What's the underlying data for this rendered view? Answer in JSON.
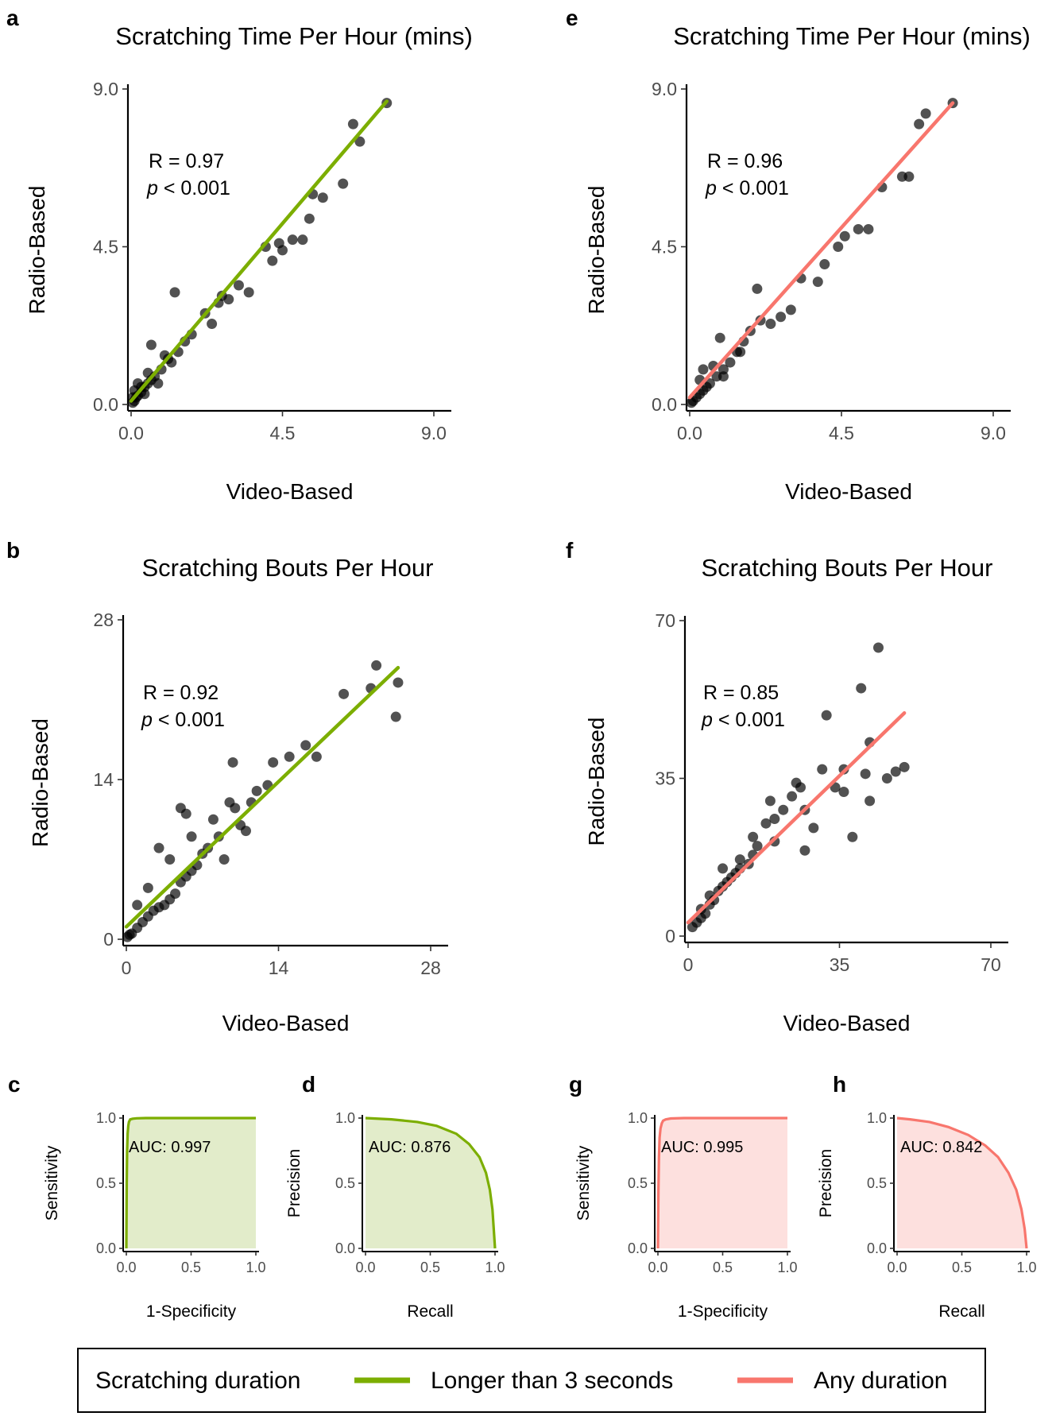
{
  "chart_data": [
    {
      "panel": "a",
      "type": "scatter",
      "title": "Scratching Time Per Hour (mins)",
      "xlabel": "Video-Based",
      "ylabel": "Radio-Based",
      "xlim": [
        0,
        9
      ],
      "ylim": [
        0,
        9
      ],
      "xticks": [
        "0.0",
        "4.5",
        "9.0"
      ],
      "yticks": [
        "0.0",
        "4.5",
        "9.0"
      ],
      "annotation": {
        "r": "R = 0.97",
        "p_italic": "p",
        "p_rest": " < 0.001"
      },
      "fit_line": {
        "color": "#7cae00",
        "x": [
          0.0,
          7.6
        ],
        "y": [
          0.1,
          8.65
        ]
      },
      "points": {
        "x": [
          7.6,
          6.6,
          6.8,
          6.3,
          5.7,
          5.4,
          5.3,
          5.1,
          4.8,
          4.5,
          4.4,
          4.2,
          4.0,
          3.5,
          3.2,
          2.9,
          2.7,
          2.6,
          2.4,
          2.2,
          1.8,
          1.6,
          1.4,
          1.2,
          1.1,
          0.9,
          0.7,
          0.6,
          0.5,
          0.4,
          0.3,
          0.2,
          0.15,
          0.1,
          0.05,
          0.3,
          0.5,
          0.8,
          1.0,
          1.3,
          0.2,
          0.4,
          0.6,
          0.1,
          0.05
        ],
        "y": [
          8.6,
          8.0,
          7.5,
          6.3,
          5.9,
          6.0,
          5.3,
          4.7,
          4.7,
          4.4,
          4.6,
          4.1,
          4.5,
          3.2,
          3.4,
          3.0,
          3.1,
          2.9,
          2.3,
          2.6,
          2.0,
          1.8,
          1.5,
          1.2,
          1.3,
          1.0,
          0.8,
          0.7,
          0.6,
          0.5,
          0.35,
          0.25,
          0.2,
          0.1,
          0.05,
          0.5,
          0.9,
          0.6,
          1.4,
          3.2,
          0.6,
          0.3,
          1.7,
          0.4,
          0.2
        ]
      }
    },
    {
      "panel": "b",
      "type": "scatter",
      "title": "Scratching Bouts Per Hour",
      "xlabel": "Video-Based",
      "ylabel": "Radio-Based",
      "xlim": [
        0,
        28
      ],
      "ylim": [
        0,
        28
      ],
      "xticks": [
        "0",
        "14",
        "28"
      ],
      "yticks": [
        "0",
        "14",
        "28"
      ],
      "annotation": {
        "r": "R = 0.92",
        "p_italic": "p",
        "p_rest": " < 0.001"
      },
      "fit_line": {
        "color": "#7cae00",
        "x": [
          0.0,
          25.0
        ],
        "y": [
          1.1,
          23.8
        ]
      },
      "points": {
        "x": [
          23.0,
          25.0,
          22.5,
          24.8,
          20.0,
          17.5,
          16.5,
          15.0,
          13.5,
          13.0,
          12.0,
          11.5,
          10.5,
          10.0,
          9.5,
          9.0,
          8.5,
          8.0,
          7.5,
          7.0,
          6.5,
          6.0,
          5.5,
          5.0,
          4.5,
          4.0,
          3.5,
          3.0,
          2.5,
          2.0,
          1.5,
          1.0,
          0.5,
          0.3,
          0.1,
          5.0,
          5.5,
          3.0,
          9.8,
          11.0,
          4.0,
          2.0,
          6.0,
          1.0
        ],
        "y": [
          24.0,
          22.5,
          22.0,
          19.5,
          21.5,
          16.0,
          17.0,
          16.0,
          15.5,
          13.5,
          13.0,
          12.0,
          10.0,
          11.5,
          12.0,
          7.0,
          9.0,
          10.5,
          8.0,
          7.5,
          6.5,
          6.0,
          5.5,
          5.0,
          4.0,
          3.5,
          3.0,
          2.8,
          2.5,
          2.0,
          1.5,
          1.0,
          0.5,
          0.4,
          0.2,
          11.5,
          11.0,
          8.0,
          15.5,
          9.5,
          7.0,
          4.5,
          9.0,
          3.0
        ]
      }
    },
    {
      "panel": "c",
      "type": "line",
      "curve": "roc",
      "xlabel": "1-Specificity",
      "ylabel": "Sensitivity",
      "xlim": [
        0,
        1
      ],
      "ylim": [
        0,
        1
      ],
      "xticks": [
        "0.0",
        "0.5",
        "1.0"
      ],
      "yticks": [
        "0.0",
        "0.5",
        "1.0"
      ],
      "auc_label": "AUC: 0.997",
      "color": "#7cae00",
      "fill": "#e2ecca",
      "x": [
        0.0,
        0.003,
        0.006,
        0.01,
        0.015,
        0.02,
        0.03,
        0.05,
        0.08,
        0.15,
        0.4,
        1.0
      ],
      "y": [
        0.0,
        0.5,
        0.75,
        0.88,
        0.94,
        0.97,
        0.99,
        0.995,
        0.998,
        1.0,
        1.0,
        1.0
      ]
    },
    {
      "panel": "d",
      "type": "line",
      "curve": "precision-recall",
      "xlabel": "Recall",
      "ylabel": "Precision",
      "xlim": [
        0,
        1
      ],
      "ylim": [
        0,
        1
      ],
      "xticks": [
        "0.0",
        "0.5",
        "1.0"
      ],
      "yticks": [
        "0.0",
        "0.5",
        "1.0"
      ],
      "auc_label": "AUC: 0.876",
      "color": "#7cae00",
      "fill": "#e2ecca",
      "x": [
        0.0,
        0.2,
        0.4,
        0.55,
        0.7,
        0.8,
        0.88,
        0.93,
        0.96,
        0.98,
        0.99,
        1.0
      ],
      "y": [
        1.0,
        0.99,
        0.97,
        0.94,
        0.88,
        0.8,
        0.7,
        0.58,
        0.45,
        0.3,
        0.15,
        0.0
      ]
    },
    {
      "panel": "e",
      "type": "scatter",
      "title": "Scratching Time Per Hour (mins)",
      "xlabel": "Video-Based",
      "ylabel": "Radio-Based",
      "xlim": [
        0,
        9
      ],
      "ylim": [
        0,
        9
      ],
      "xticks": [
        "0.0",
        "4.5",
        "9.0"
      ],
      "yticks": [
        "0.0",
        "4.5",
        "9.0"
      ],
      "annotation": {
        "r": "R = 0.96",
        "p_italic": "p",
        "p_rest": " < 0.001"
      },
      "fit_line": {
        "color": "#f8766d",
        "x": [
          0.0,
          7.8
        ],
        "y": [
          0.2,
          8.6
        ]
      },
      "points": {
        "x": [
          7.8,
          6.8,
          7.0,
          6.5,
          6.3,
          5.7,
          5.3,
          5.0,
          4.6,
          4.4,
          4.0,
          3.8,
          3.3,
          3.0,
          2.7,
          2.4,
          2.1,
          1.8,
          1.6,
          1.4,
          1.2,
          1.0,
          0.8,
          0.6,
          0.5,
          0.4,
          0.3,
          0.2,
          0.1,
          0.05,
          2.0,
          1.5,
          1.0,
          0.7,
          0.3,
          0.9,
          0.4
        ],
        "y": [
          8.6,
          8.0,
          8.3,
          6.5,
          6.5,
          6.2,
          5.0,
          5.0,
          4.8,
          4.5,
          4.0,
          3.5,
          3.6,
          2.7,
          2.5,
          2.3,
          2.4,
          2.1,
          1.8,
          1.5,
          1.2,
          1.0,
          0.8,
          0.6,
          0.5,
          0.4,
          0.3,
          0.2,
          0.1,
          0.05,
          3.3,
          1.5,
          0.8,
          1.1,
          0.7,
          1.9,
          1.0
        ]
      }
    },
    {
      "panel": "f",
      "type": "scatter",
      "title": "Scratching Bouts Per Hour",
      "xlabel": "Video-Based",
      "ylabel": "Radio-Based",
      "xlim": [
        0,
        70
      ],
      "ylim": [
        0,
        70
      ],
      "xticks": [
        "0",
        "35",
        "70"
      ],
      "yticks": [
        "0",
        "35",
        "70"
      ],
      "annotation": {
        "r": "R = 0.85",
        "p_italic": "p",
        "p_rest": " < 0.001"
      },
      "fit_line": {
        "color": "#f8766d",
        "x": [
          0.0,
          50.0
        ],
        "y": [
          3.0,
          49.5
        ]
      },
      "points": {
        "x": [
          44.0,
          40.0,
          42.0,
          32.0,
          50.0,
          48.0,
          46.0,
          42.0,
          38.0,
          36.0,
          34.0,
          31.0,
          29.0,
          27.0,
          26.0,
          25.0,
          24.0,
          22.0,
          20.0,
          19.0,
          18.0,
          16.0,
          15.0,
          14.0,
          12.0,
          11.0,
          10.0,
          9.0,
          8.0,
          7.0,
          6.0,
          5.0,
          4.0,
          3.0,
          2.0,
          1.0,
          36.0,
          41.0,
          27.0,
          15.0,
          20.0,
          12.0,
          8.0,
          5.0,
          3.0
        ],
        "y": [
          64.0,
          55.0,
          43.0,
          49.0,
          37.5,
          36.5,
          35.0,
          30.0,
          22.0,
          37.0,
          33.0,
          37.0,
          24.0,
          28.0,
          33.0,
          34.0,
          31.0,
          28.0,
          26.0,
          30.0,
          25.0,
          20.0,
          18.0,
          16.0,
          15.0,
          14.0,
          13.0,
          12.0,
          11.0,
          10.0,
          8.0,
          7.0,
          5.0,
          4.0,
          3.0,
          2.0,
          32.0,
          36.0,
          19.0,
          22.0,
          21.0,
          17.0,
          15.0,
          9.0,
          6.0
        ]
      }
    },
    {
      "panel": "g",
      "type": "line",
      "curve": "roc",
      "xlabel": "1-Specificity",
      "ylabel": "Sensitivity",
      "xlim": [
        0,
        1
      ],
      "ylim": [
        0,
        1
      ],
      "xticks": [
        "0.0",
        "0.5",
        "1.0"
      ],
      "yticks": [
        "0.0",
        "0.5",
        "1.0"
      ],
      "auc_label": "AUC: 0.995",
      "color": "#f8766d",
      "fill": "#fde0de",
      "x": [
        0.0,
        0.004,
        0.008,
        0.013,
        0.02,
        0.03,
        0.04,
        0.06,
        0.1,
        0.2,
        0.5,
        1.0
      ],
      "y": [
        0.0,
        0.45,
        0.7,
        0.85,
        0.92,
        0.96,
        0.98,
        0.99,
        0.997,
        1.0,
        1.0,
        1.0
      ]
    },
    {
      "panel": "h",
      "type": "line",
      "curve": "precision-recall",
      "xlabel": "Recall",
      "ylabel": "Precision",
      "xlim": [
        0,
        1
      ],
      "ylim": [
        0,
        1
      ],
      "xticks": [
        "0.0",
        "0.5",
        "1.0"
      ],
      "yticks": [
        "0.0",
        "0.5",
        "1.0"
      ],
      "auc_label": "AUC: 0.842",
      "color": "#f8766d",
      "fill": "#fde0de",
      "x": [
        0.0,
        0.1,
        0.25,
        0.4,
        0.55,
        0.68,
        0.78,
        0.86,
        0.92,
        0.96,
        0.985,
        1.0
      ],
      "y": [
        1.0,
        0.99,
        0.97,
        0.93,
        0.87,
        0.79,
        0.7,
        0.58,
        0.45,
        0.3,
        0.15,
        0.0
      ]
    }
  ],
  "legend": {
    "title": "Scratching duration",
    "items": [
      {
        "label": "Longer than 3 seconds",
        "color": "#7cae00"
      },
      {
        "label": "Any duration",
        "color": "#f8766d"
      }
    ]
  },
  "point_color": "#000000",
  "axis_color": "#000000"
}
